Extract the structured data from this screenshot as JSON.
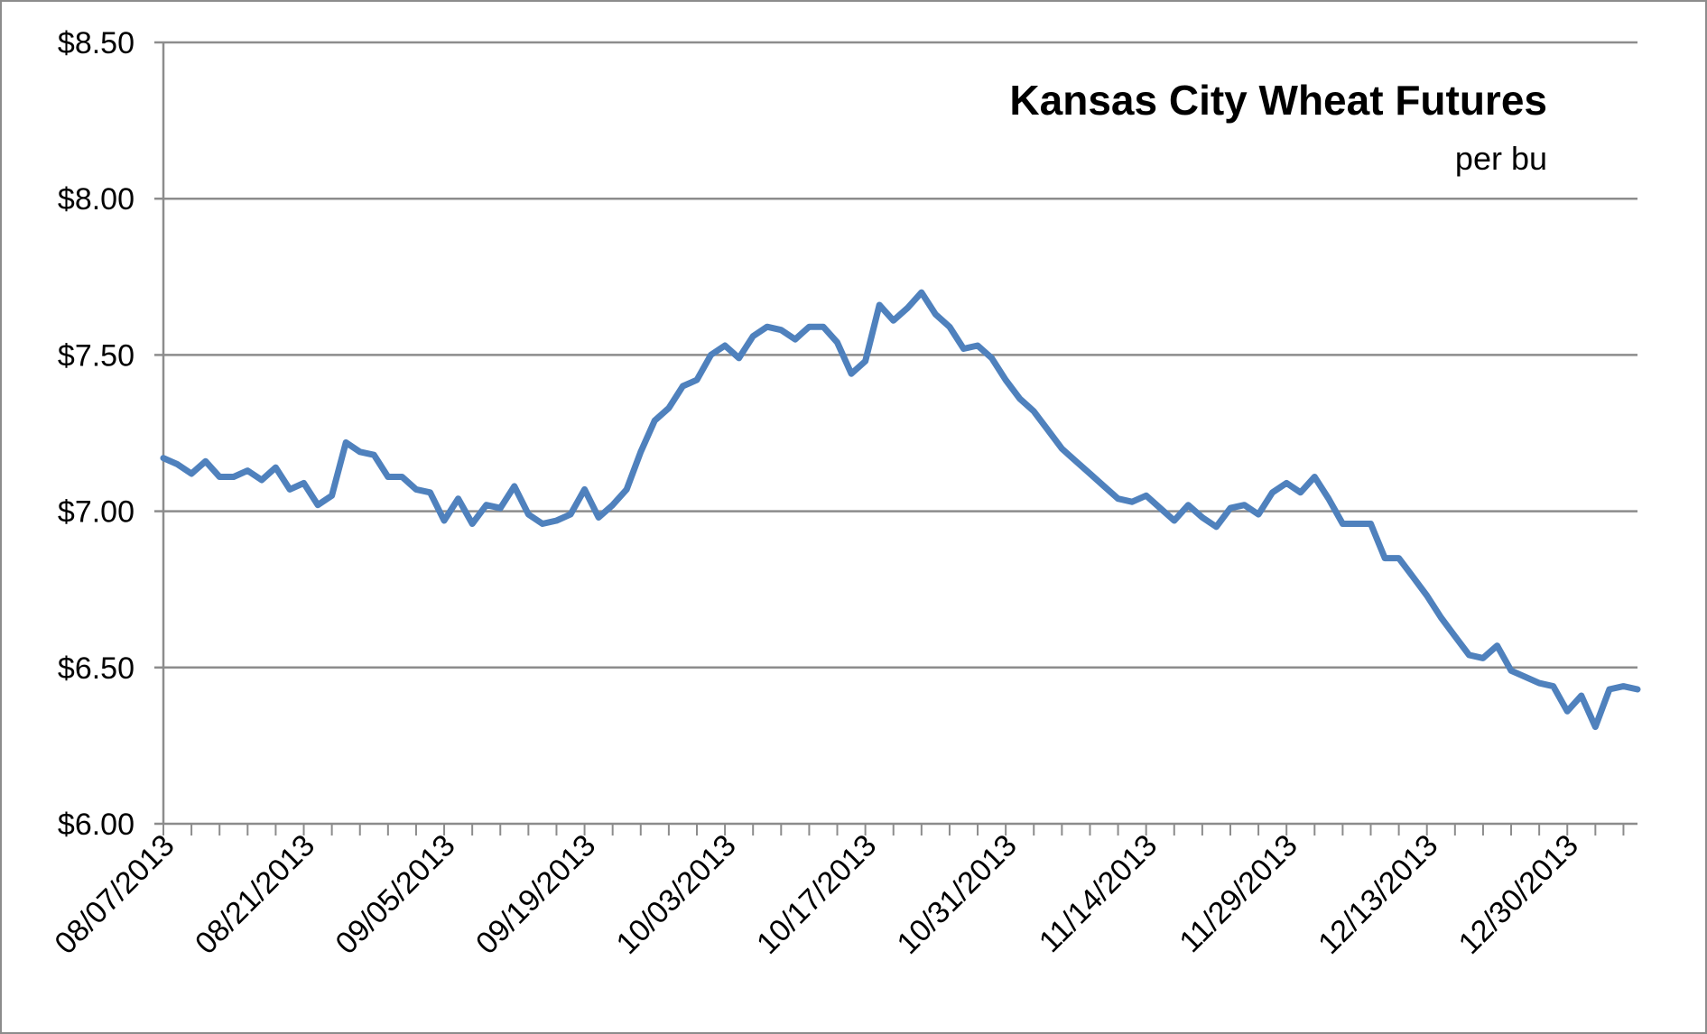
{
  "chart_data": {
    "type": "line",
    "title": "Kansas City Wheat Futures",
    "subtitle": "per bu",
    "xlabel": "",
    "ylabel": "",
    "ylim": [
      6.0,
      8.5
    ],
    "y_ticks": [
      "$6.00",
      "$6.50",
      "$7.00",
      "$7.50",
      "$8.00",
      "$8.50"
    ],
    "y_tick_values": [
      6.0,
      6.5,
      7.0,
      7.5,
      8.0,
      8.5
    ],
    "x_tick_labels": [
      "08/07/2013",
      "08/21/2013",
      "09/05/2013",
      "09/19/2013",
      "10/03/2013",
      "10/17/2013",
      "10/31/2013",
      "11/14/2013",
      "11/29/2013",
      "12/13/2013",
      "12/30/2013"
    ],
    "x_tick_label_indices": [
      0,
      10,
      20,
      30,
      40,
      50,
      60,
      70,
      80,
      90,
      100
    ],
    "grid": true,
    "line_color": "#4f81bd",
    "series": [
      {
        "values": [
          7.17,
          7.15,
          7.12,
          7.16,
          7.11,
          7.11,
          7.13,
          7.1,
          7.14,
          7.07,
          7.09,
          7.02,
          7.05,
          7.22,
          7.19,
          7.18,
          7.11,
          7.11,
          7.07,
          7.06,
          6.97,
          7.04,
          6.96,
          7.02,
          7.01,
          7.08,
          6.99,
          6.96,
          6.97,
          6.99,
          7.07,
          6.98,
          7.02,
          7.07,
          7.19,
          7.29,
          7.33,
          7.4,
          7.42,
          7.5,
          7.53,
          7.49,
          7.56,
          7.59,
          7.58,
          7.55,
          7.59,
          7.59,
          7.54,
          7.44,
          7.48,
          7.66,
          7.61,
          7.65,
          7.7,
          7.63,
          7.59,
          7.52,
          7.53,
          7.49,
          7.42,
          7.36,
          7.32,
          7.26,
          7.2,
          7.16,
          7.12,
          7.08,
          7.04,
          7.03,
          7.05,
          7.01,
          6.97,
          7.02,
          6.98,
          6.95,
          7.01,
          7.02,
          6.99,
          7.06,
          7.09,
          7.06,
          7.11,
          7.04,
          6.96,
          6.96,
          6.96,
          6.85,
          6.85,
          6.79,
          6.73,
          6.66,
          6.6,
          6.54,
          6.53,
          6.57,
          6.49,
          6.47,
          6.45,
          6.44,
          6.36,
          6.41,
          6.31,
          6.43,
          6.44,
          6.43
        ]
      }
    ]
  }
}
